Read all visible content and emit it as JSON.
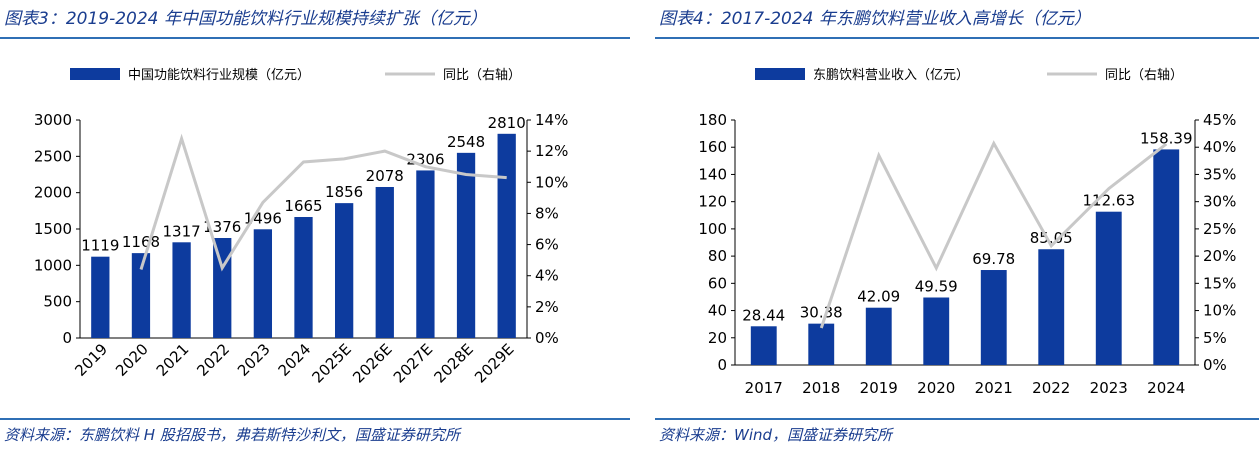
{
  "left": {
    "figure_title": "图表3：2019-2024 年中国功能饮料行业规模持续扩张（亿元）",
    "source": "资料来源：东鹏饮料 H 股招股书，弗若斯特沙利文，国盛证券研究所"
  },
  "right": {
    "figure_title": "图表4：2017-2024 年东鹏饮料营业收入高增长（亿元）",
    "source": "资料来源：Wind，国盛证券研究所"
  },
  "colors": {
    "bar": "#0d3b9e",
    "line": "#c8c8c8",
    "rule": "#2f6fb5",
    "title": "#1a3d8f"
  },
  "chart_data": [
    {
      "type": "bar",
      "categories": [
        "2019",
        "2020",
        "2021",
        "2022",
        "2023",
        "2024",
        "2025E",
        "2026E",
        "2027E",
        "2028E",
        "2029E"
      ],
      "series": [
        {
          "name": "中国功能饮料行业规模（亿元）",
          "type": "bar",
          "axis": "left",
          "values": [
            1119,
            1168,
            1317,
            1376,
            1496,
            1665,
            1856,
            2078,
            2306,
            2548,
            2810
          ]
        },
        {
          "name": "同比（右轴）",
          "type": "line",
          "axis": "right",
          "values": [
            null,
            4.4,
            12.8,
            4.5,
            8.7,
            11.3,
            11.5,
            12.0,
            11.0,
            10.5,
            10.3
          ]
        }
      ],
      "data_labels": [
        "1119",
        "1168",
        "1317",
        "1376",
        "1496",
        "1665",
        "1856",
        "2078",
        "2306",
        "2548",
        "2810"
      ],
      "ylim": [
        0,
        3000
      ],
      "yticks": [
        "0",
        "500",
        "1000",
        "1500",
        "2000",
        "2500",
        "3000"
      ],
      "y2lim": [
        0,
        14
      ],
      "y2ticks": [
        "0%",
        "2%",
        "4%",
        "6%",
        "8%",
        "10%",
        "12%",
        "14%"
      ],
      "legend_position": "top",
      "grid": false
    },
    {
      "type": "bar",
      "categories": [
        "2017",
        "2018",
        "2019",
        "2020",
        "2021",
        "2022",
        "2023",
        "2024"
      ],
      "series": [
        {
          "name": "东鹏饮料营业收入（亿元）",
          "type": "bar",
          "axis": "left",
          "values": [
            28.44,
            30.38,
            42.09,
            49.59,
            69.78,
            85.05,
            112.63,
            158.39
          ]
        },
        {
          "name": "同比（右轴）",
          "type": "line",
          "axis": "right",
          "values": [
            null,
            6.8,
            38.5,
            17.8,
            40.7,
            21.9,
            32.4,
            40.6
          ]
        }
      ],
      "data_labels": [
        "28.44",
        "30.38",
        "42.09",
        "49.59",
        "69.78",
        "85.05",
        "112.63",
        "158.39"
      ],
      "ylim": [
        0,
        180
      ],
      "yticks": [
        "0",
        "20",
        "40",
        "60",
        "80",
        "100",
        "120",
        "140",
        "160",
        "180"
      ],
      "y2lim": [
        0,
        45
      ],
      "y2ticks": [
        "0%",
        "5%",
        "10%",
        "15%",
        "20%",
        "25%",
        "30%",
        "35%",
        "40%",
        "45%"
      ],
      "legend_position": "top",
      "grid": false
    }
  ]
}
